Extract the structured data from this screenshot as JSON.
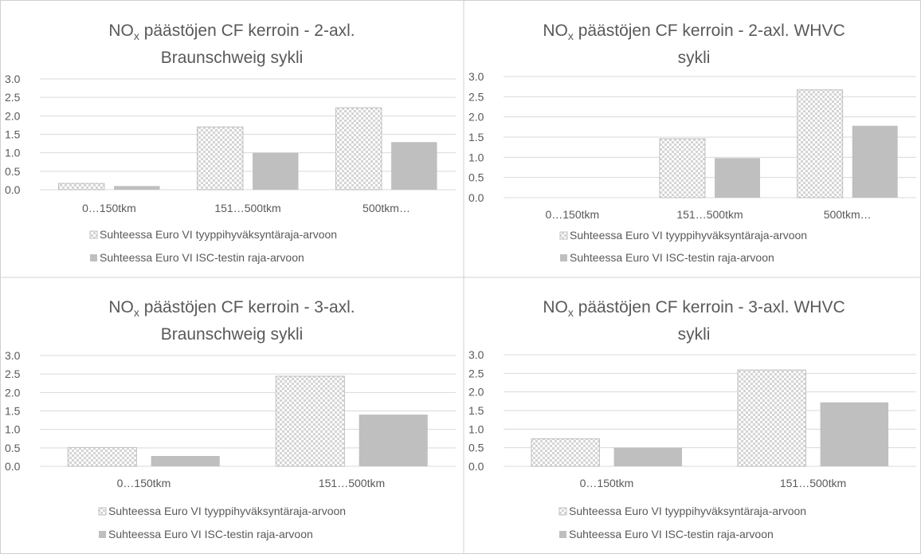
{
  "legend": {
    "series1": "Suhteessa Euro VI tyyppihyväksyntäraja-arvoon",
    "series2": "Suhteessa Euro VI ISC-testin raja-arvoon"
  },
  "colors": {
    "hatch_fill": "#d9d9d9",
    "hatch_alt": "#ffffff",
    "hatch_stroke": "#bfbfbf",
    "solid": "#bfbfbf",
    "grid": "#d9d9d9",
    "text": "#595959",
    "frame": "#d0d0d0"
  },
  "chart_data": [
    {
      "type": "bar",
      "title_main": "NO",
      "title_sub": "x",
      "title_rest": " päästöjen CF kerroin - 2-axl.",
      "title_line2": "Braunschweig sykli",
      "categories": [
        "0…150tkm",
        "151…500tkm",
        "500tkm…"
      ],
      "ylim": [
        0,
        3
      ],
      "yticks": [
        "0.0",
        "0.5",
        "1.0",
        "1.5",
        "2.0",
        "2.5",
        "3.0"
      ],
      "legend": "bottom",
      "series": [
        {
          "name": "Suhteessa Euro VI tyyppihyväksyntäraja-arvoon",
          "values": [
            0.17,
            1.7,
            2.22
          ]
        },
        {
          "name": "Suhteessa Euro VI ISC-testin raja-arvoon",
          "values": [
            0.1,
            1.0,
            1.29
          ]
        }
      ]
    },
    {
      "type": "bar",
      "title_main": "NO",
      "title_sub": "x",
      "title_rest": " päästöjen CF kerroin - 2-axl. WHVC",
      "title_line2": "sykli",
      "categories": [
        "0…150tkm",
        "151…500tkm",
        "500tkm…"
      ],
      "ylim": [
        0,
        3
      ],
      "yticks": [
        "0.0",
        "0.5",
        "1.0",
        "1.5",
        "2.0",
        "2.5",
        "3.0"
      ],
      "legend": "bottom",
      "series": [
        {
          "name": "Suhteessa Euro VI tyyppihyväksyntäraja-arvoon",
          "values": [
            0,
            1.46,
            2.67
          ]
        },
        {
          "name": "Suhteessa Euro VI ISC-testin raja-arvoon",
          "values": [
            0,
            0.98,
            1.78
          ]
        }
      ]
    },
    {
      "type": "bar",
      "title_main": "NO",
      "title_sub": "x",
      "title_rest": " päästöjen CF kerroin - 3-axl.",
      "title_line2": "Braunschweig sykli",
      "categories": [
        "0…150tkm",
        "151…500tkm"
      ],
      "ylim": [
        0,
        3
      ],
      "yticks": [
        "0.0",
        "0.5",
        "1.0",
        "1.5",
        "2.0",
        "2.5",
        "3.0"
      ],
      "legend": "bottom",
      "series": [
        {
          "name": "Suhteessa Euro VI tyyppihyväksyntäraja-arvoon",
          "values": [
            0.51,
            2.44
          ]
        },
        {
          "name": "Suhteessa Euro VI ISC-testin raja-arvoon",
          "values": [
            0.28,
            1.4
          ]
        }
      ]
    },
    {
      "type": "bar",
      "title_main": "NO",
      "title_sub": "x",
      "title_rest": " päästöjen CF kerroin - 3-axl. WHVC",
      "title_line2": "sykli",
      "categories": [
        "0…150tkm",
        "151…500tkm"
      ],
      "ylim": [
        0,
        3
      ],
      "yticks": [
        "0.0",
        "0.5",
        "1.0",
        "1.5",
        "2.0",
        "2.5",
        "3.0"
      ],
      "legend": "bottom",
      "series": [
        {
          "name": "Suhteessa Euro VI tyyppihyväksyntäraja-arvoon",
          "values": [
            0.74,
            2.59
          ]
        },
        {
          "name": "Suhteessa Euro VI ISC-testin raja-arvoon",
          "values": [
            0.5,
            1.72
          ]
        }
      ]
    }
  ]
}
